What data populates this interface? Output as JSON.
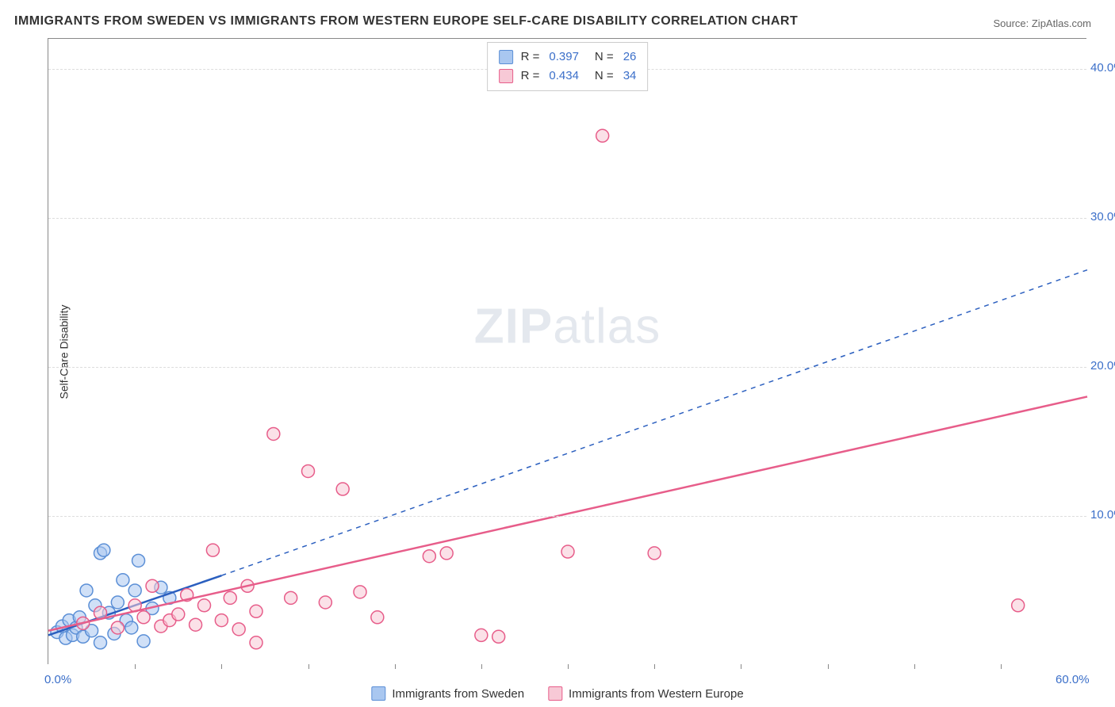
{
  "title": "IMMIGRANTS FROM SWEDEN VS IMMIGRANTS FROM WESTERN EUROPE SELF-CARE DISABILITY CORRELATION CHART",
  "source": "Source: ZipAtlas.com",
  "ylabel": "Self-Care Disability",
  "watermark_a": "ZIP",
  "watermark_b": "atlas",
  "xlim": [
    0,
    60
  ],
  "ylim": [
    0,
    42
  ],
  "x_ticks": [
    0,
    60
  ],
  "x_tick_labels": [
    "0.0%",
    "60.0%"
  ],
  "y_gridlines": [
    10,
    20,
    30,
    40
  ],
  "y_tick_labels": [
    "10.0%",
    "20.0%",
    "30.0%",
    "40.0%"
  ],
  "x_minor_ticks": [
    5,
    10,
    15,
    20,
    25,
    30,
    35,
    40,
    45,
    50,
    55
  ],
  "colors": {
    "blue_fill": "#a9c7f0",
    "blue_stroke": "#5b8fd6",
    "pink_fill": "#f7c9d6",
    "pink_stroke": "#e75d8a",
    "blue_line": "#2b5fbf",
    "pink_line": "#e75d8a",
    "axis_label": "#3b6fc9"
  },
  "series": [
    {
      "name": "Immigrants from Sweden",
      "color_key": "blue",
      "R": "0.397",
      "N": "26",
      "trend": {
        "x1": 0,
        "y1": 2.0,
        "x2_solid": 10,
        "y2_solid": 6.0,
        "x2_dash": 60,
        "y2_dash": 26.5
      },
      "points": [
        [
          0.5,
          2.2
        ],
        [
          0.8,
          2.6
        ],
        [
          1.0,
          1.8
        ],
        [
          1.2,
          3.0
        ],
        [
          1.4,
          2.0
        ],
        [
          1.6,
          2.5
        ],
        [
          1.8,
          3.2
        ],
        [
          2.0,
          1.9
        ],
        [
          2.2,
          5.0
        ],
        [
          2.5,
          2.3
        ],
        [
          2.7,
          4.0
        ],
        [
          3.0,
          7.5
        ],
        [
          3.2,
          7.7
        ],
        [
          3.5,
          3.5
        ],
        [
          3.8,
          2.1
        ],
        [
          4.0,
          4.2
        ],
        [
          4.3,
          5.7
        ],
        [
          4.5,
          3.0
        ],
        [
          4.8,
          2.5
        ],
        [
          5.0,
          5.0
        ],
        [
          5.2,
          7.0
        ],
        [
          5.5,
          1.6
        ],
        [
          6.0,
          3.8
        ],
        [
          6.5,
          5.2
        ],
        [
          7.0,
          4.5
        ],
        [
          3.0,
          1.5
        ]
      ]
    },
    {
      "name": "Immigrants from Western Europe",
      "color_key": "pink",
      "R": "0.434",
      "N": "34",
      "trend": {
        "x1": 0,
        "y1": 2.3,
        "x2_solid": 60,
        "y2_solid": 18.0
      },
      "points": [
        [
          2.0,
          2.8
        ],
        [
          3.0,
          3.5
        ],
        [
          4.0,
          2.5
        ],
        [
          5.0,
          4.0
        ],
        [
          5.5,
          3.2
        ],
        [
          6.0,
          5.3
        ],
        [
          6.5,
          2.6
        ],
        [
          7.0,
          3.0
        ],
        [
          7.5,
          3.4
        ],
        [
          8.0,
          4.7
        ],
        [
          8.5,
          2.7
        ],
        [
          9.0,
          4.0
        ],
        [
          9.5,
          7.7
        ],
        [
          10.0,
          3.0
        ],
        [
          10.5,
          4.5
        ],
        [
          11.0,
          2.4
        ],
        [
          11.5,
          5.3
        ],
        [
          12.0,
          3.6
        ],
        [
          13.0,
          15.5
        ],
        [
          14.0,
          4.5
        ],
        [
          15.0,
          13.0
        ],
        [
          16.0,
          4.2
        ],
        [
          17.0,
          11.8
        ],
        [
          18.0,
          4.9
        ],
        [
          19.0,
          3.2
        ],
        [
          22.0,
          7.3
        ],
        [
          23.0,
          7.5
        ],
        [
          25.0,
          2.0
        ],
        [
          26.0,
          1.9
        ],
        [
          30.0,
          7.6
        ],
        [
          32.0,
          35.5
        ],
        [
          35.0,
          7.5
        ],
        [
          56.0,
          4.0
        ],
        [
          12.0,
          1.5
        ]
      ]
    }
  ],
  "legend": {
    "r_label": "R =",
    "n_label": "N ="
  }
}
